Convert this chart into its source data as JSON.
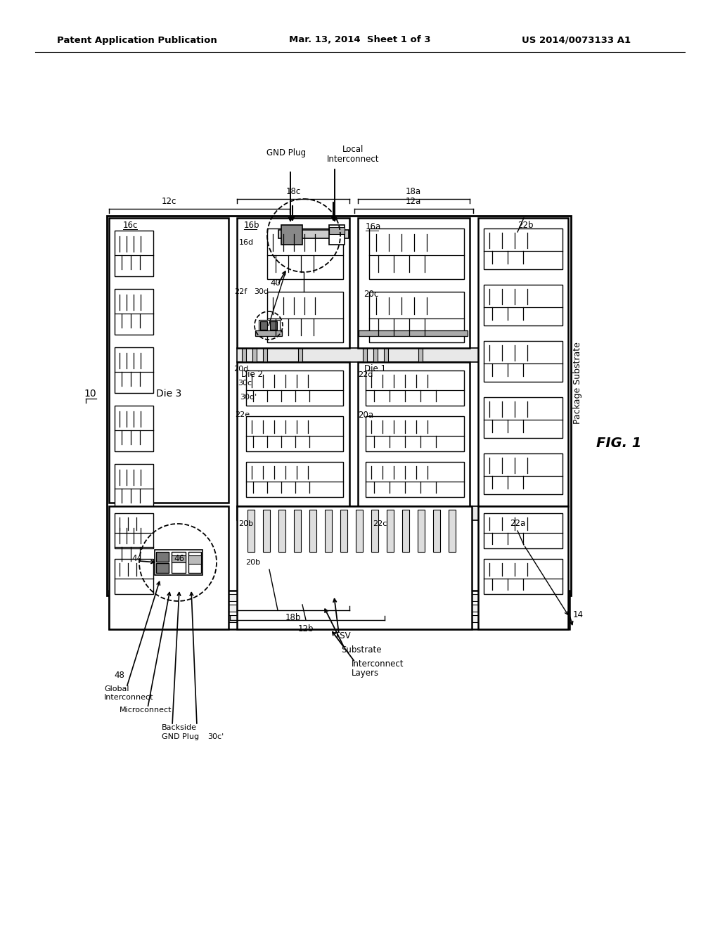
{
  "bg_color": "#ffffff",
  "header_left": "Patent Application Publication",
  "header_center": "Mar. 13, 2014  Sheet 1 of 3",
  "header_right": "US 2014/0073133 A1",
  "fig_label": "FIG. 1"
}
